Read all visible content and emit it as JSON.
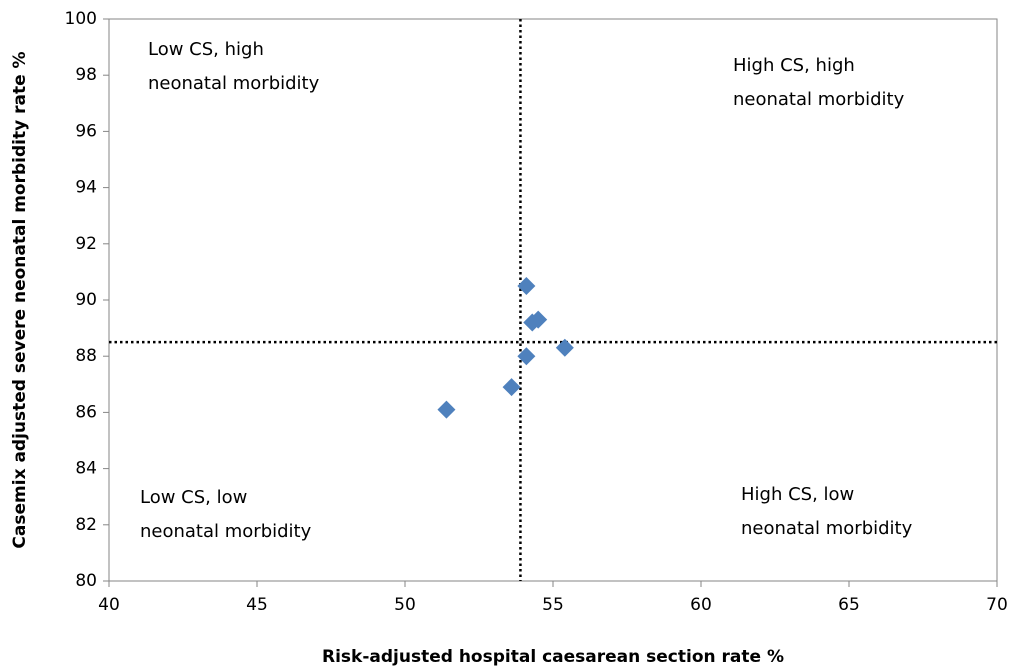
{
  "chart_data": {
    "type": "scatter",
    "x_label": "Risk-adjusted hospital caesarean section rate %",
    "y_label": "Casemix adjusted severe neonatal morbidity rate %",
    "x": [
      51.4,
      53.6,
      54.1,
      54.1,
      54.3,
      54.5,
      55.4
    ],
    "values": [
      86.1,
      86.9,
      88.0,
      90.5,
      89.2,
      89.3,
      88.3
    ],
    "color": "#4f81bd",
    "xlim": [
      40,
      70
    ],
    "xticks": [
      40,
      45,
      50,
      55,
      60,
      65,
      70
    ],
    "ylim": [
      80,
      100
    ],
    "yticks": [
      80,
      82,
      84,
      86,
      88,
      90,
      92,
      94,
      96,
      98,
      100
    ],
    "reference_lines": {
      "x": 53.9,
      "y": 88.5
    },
    "annotations": [
      [
        "Low CS, high",
        "neonatal morbidity"
      ],
      [
        "High CS, high",
        "neonatal morbidity"
      ],
      [
        "Low CS, low",
        "neonatal morbidity"
      ],
      [
        "High CS, low",
        "neonatal morbidity"
      ]
    ]
  }
}
